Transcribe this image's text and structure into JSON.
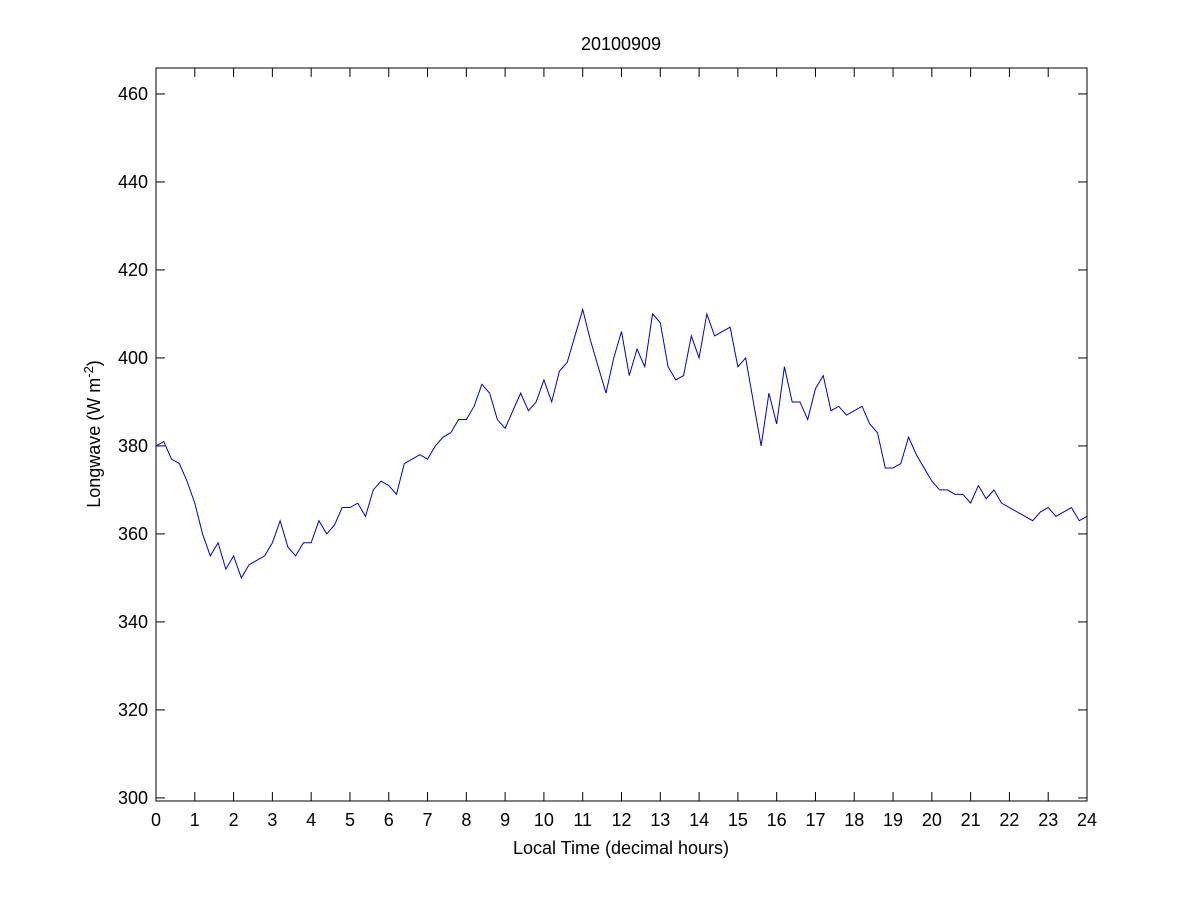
{
  "chart_data": {
    "type": "line",
    "title": "20100909",
    "xlabel": "Local Time (decimal hours)",
    "ylabel": {
      "text": "Longwave (W m",
      "superscript": "-2",
      "suffix": ")"
    },
    "x": [
      0,
      0.2,
      0.4,
      0.6,
      0.8,
      1,
      1.2,
      1.4,
      1.6,
      1.8,
      2,
      2.2,
      2.4,
      2.6,
      2.8,
      3,
      3.2,
      3.4,
      3.6,
      3.8,
      4,
      4.2,
      4.4,
      4.6,
      4.8,
      5,
      5.2,
      5.4,
      5.6,
      5.8,
      6,
      6.2,
      6.4,
      6.6,
      6.8,
      7,
      7.2,
      7.4,
      7.6,
      7.8,
      8,
      8.2,
      8.4,
      8.6,
      8.8,
      9,
      9.2,
      9.4,
      9.6,
      9.8,
      10,
      10.2,
      10.4,
      10.6,
      10.8,
      11,
      11.2,
      11.4,
      11.6,
      11.8,
      12,
      12.2,
      12.4,
      12.6,
      12.8,
      13,
      13.2,
      13.4,
      13.6,
      13.8,
      14,
      14.2,
      14.4,
      14.6,
      14.8,
      15,
      15.2,
      15.4,
      15.6,
      15.8,
      16,
      16.2,
      16.4,
      16.6,
      16.8,
      17,
      17.2,
      17.4,
      17.6,
      17.8,
      18,
      18.2,
      18.4,
      18.6,
      18.8,
      19,
      19.2,
      19.4,
      19.6,
      19.8,
      20,
      20.2,
      20.4,
      20.6,
      20.8,
      21,
      21.2,
      21.4,
      21.6,
      21.8,
      22,
      22.2,
      22.4,
      22.6,
      22.8,
      23,
      23.2,
      23.4,
      23.6,
      23.8,
      24
    ],
    "series": [
      {
        "name": "Longwave",
        "color": "#0000c8",
        "values": [
          380,
          381,
          377,
          376,
          372,
          367,
          360,
          355,
          358,
          352,
          355,
          350,
          353,
          354,
          355,
          358,
          363,
          357,
          355,
          358,
          358,
          363,
          360,
          362,
          366,
          366,
          367,
          364,
          370,
          372,
          371,
          369,
          376,
          377,
          378,
          377,
          380,
          382,
          383,
          386,
          386,
          389,
          394,
          392,
          386,
          384,
          388,
          392,
          388,
          390,
          395,
          390,
          397,
          399,
          405,
          411,
          404,
          398,
          392,
          400,
          406,
          396,
          402,
          398,
          410,
          408,
          398,
          395,
          396,
          405,
          400,
          410,
          405,
          406,
          407,
          398,
          400,
          390,
          380,
          392,
          385,
          398,
          390,
          390,
          386,
          393,
          396,
          388,
          389,
          387,
          388,
          389,
          385,
          383,
          375,
          375,
          376,
          382,
          378,
          375,
          372,
          370,
          370,
          369,
          369,
          367,
          371,
          368,
          370,
          367,
          366,
          365,
          364,
          363,
          365,
          366,
          364,
          365,
          366,
          363,
          364
        ]
      }
    ],
    "xlim": [
      0,
      24
    ],
    "xticks": [
      0,
      1,
      2,
      3,
      4,
      5,
      6,
      7,
      8,
      9,
      10,
      11,
      12,
      13,
      14,
      15,
      16,
      17,
      18,
      19,
      20,
      21,
      22,
      23,
      24
    ],
    "ylim": [
      299.3,
      465.9
    ],
    "yticks": [
      300,
      320,
      340,
      360,
      380,
      400,
      420,
      440,
      460
    ],
    "grid": false
  }
}
